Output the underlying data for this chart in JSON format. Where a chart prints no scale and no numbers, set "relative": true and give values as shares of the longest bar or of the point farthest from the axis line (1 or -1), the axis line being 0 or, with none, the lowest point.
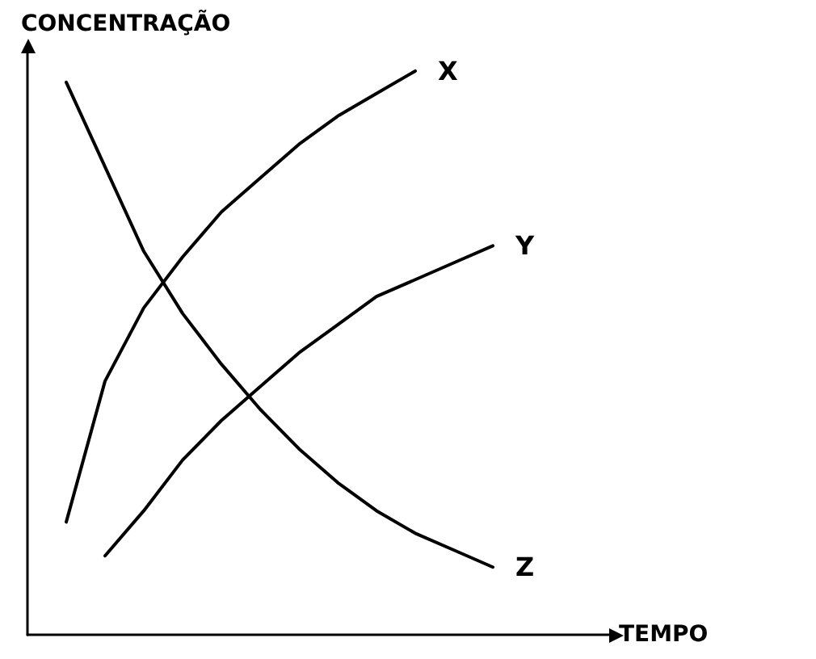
{
  "chart_data": {
    "type": "line",
    "relative": true,
    "ylabel": "CONCENTRAÇÃO",
    "xlabel": "TEMPO",
    "categories": [
      null,
      null,
      null,
      null,
      null,
      null,
      null,
      null,
      null,
      null,
      null,
      null,
      null,
      null,
      null,
      null
    ],
    "series": [
      {
        "name": "X",
        "color": "#000000",
        "values": [
          null,
          0.2,
          0.45,
          0.58,
          0.67,
          0.75,
          0.81,
          0.87,
          0.92,
          0.96,
          1.0,
          null,
          null,
          null,
          null,
          null
        ]
      },
      {
        "name": "Y",
        "color": "#000000",
        "values": [
          null,
          null,
          0.14,
          0.22,
          0.31,
          0.38,
          0.44,
          0.5,
          0.55,
          0.6,
          0.63,
          0.66,
          0.69,
          null,
          null,
          null
        ]
      },
      {
        "name": "Z",
        "color": "#000000",
        "values": [
          null,
          0.98,
          0.83,
          0.68,
          0.57,
          0.48,
          0.4,
          0.33,
          0.27,
          0.22,
          0.18,
          0.15,
          0.12,
          null,
          null,
          null
        ]
      }
    ],
    "grid": false,
    "legend": false,
    "marker": "none",
    "line_style": "solid"
  }
}
